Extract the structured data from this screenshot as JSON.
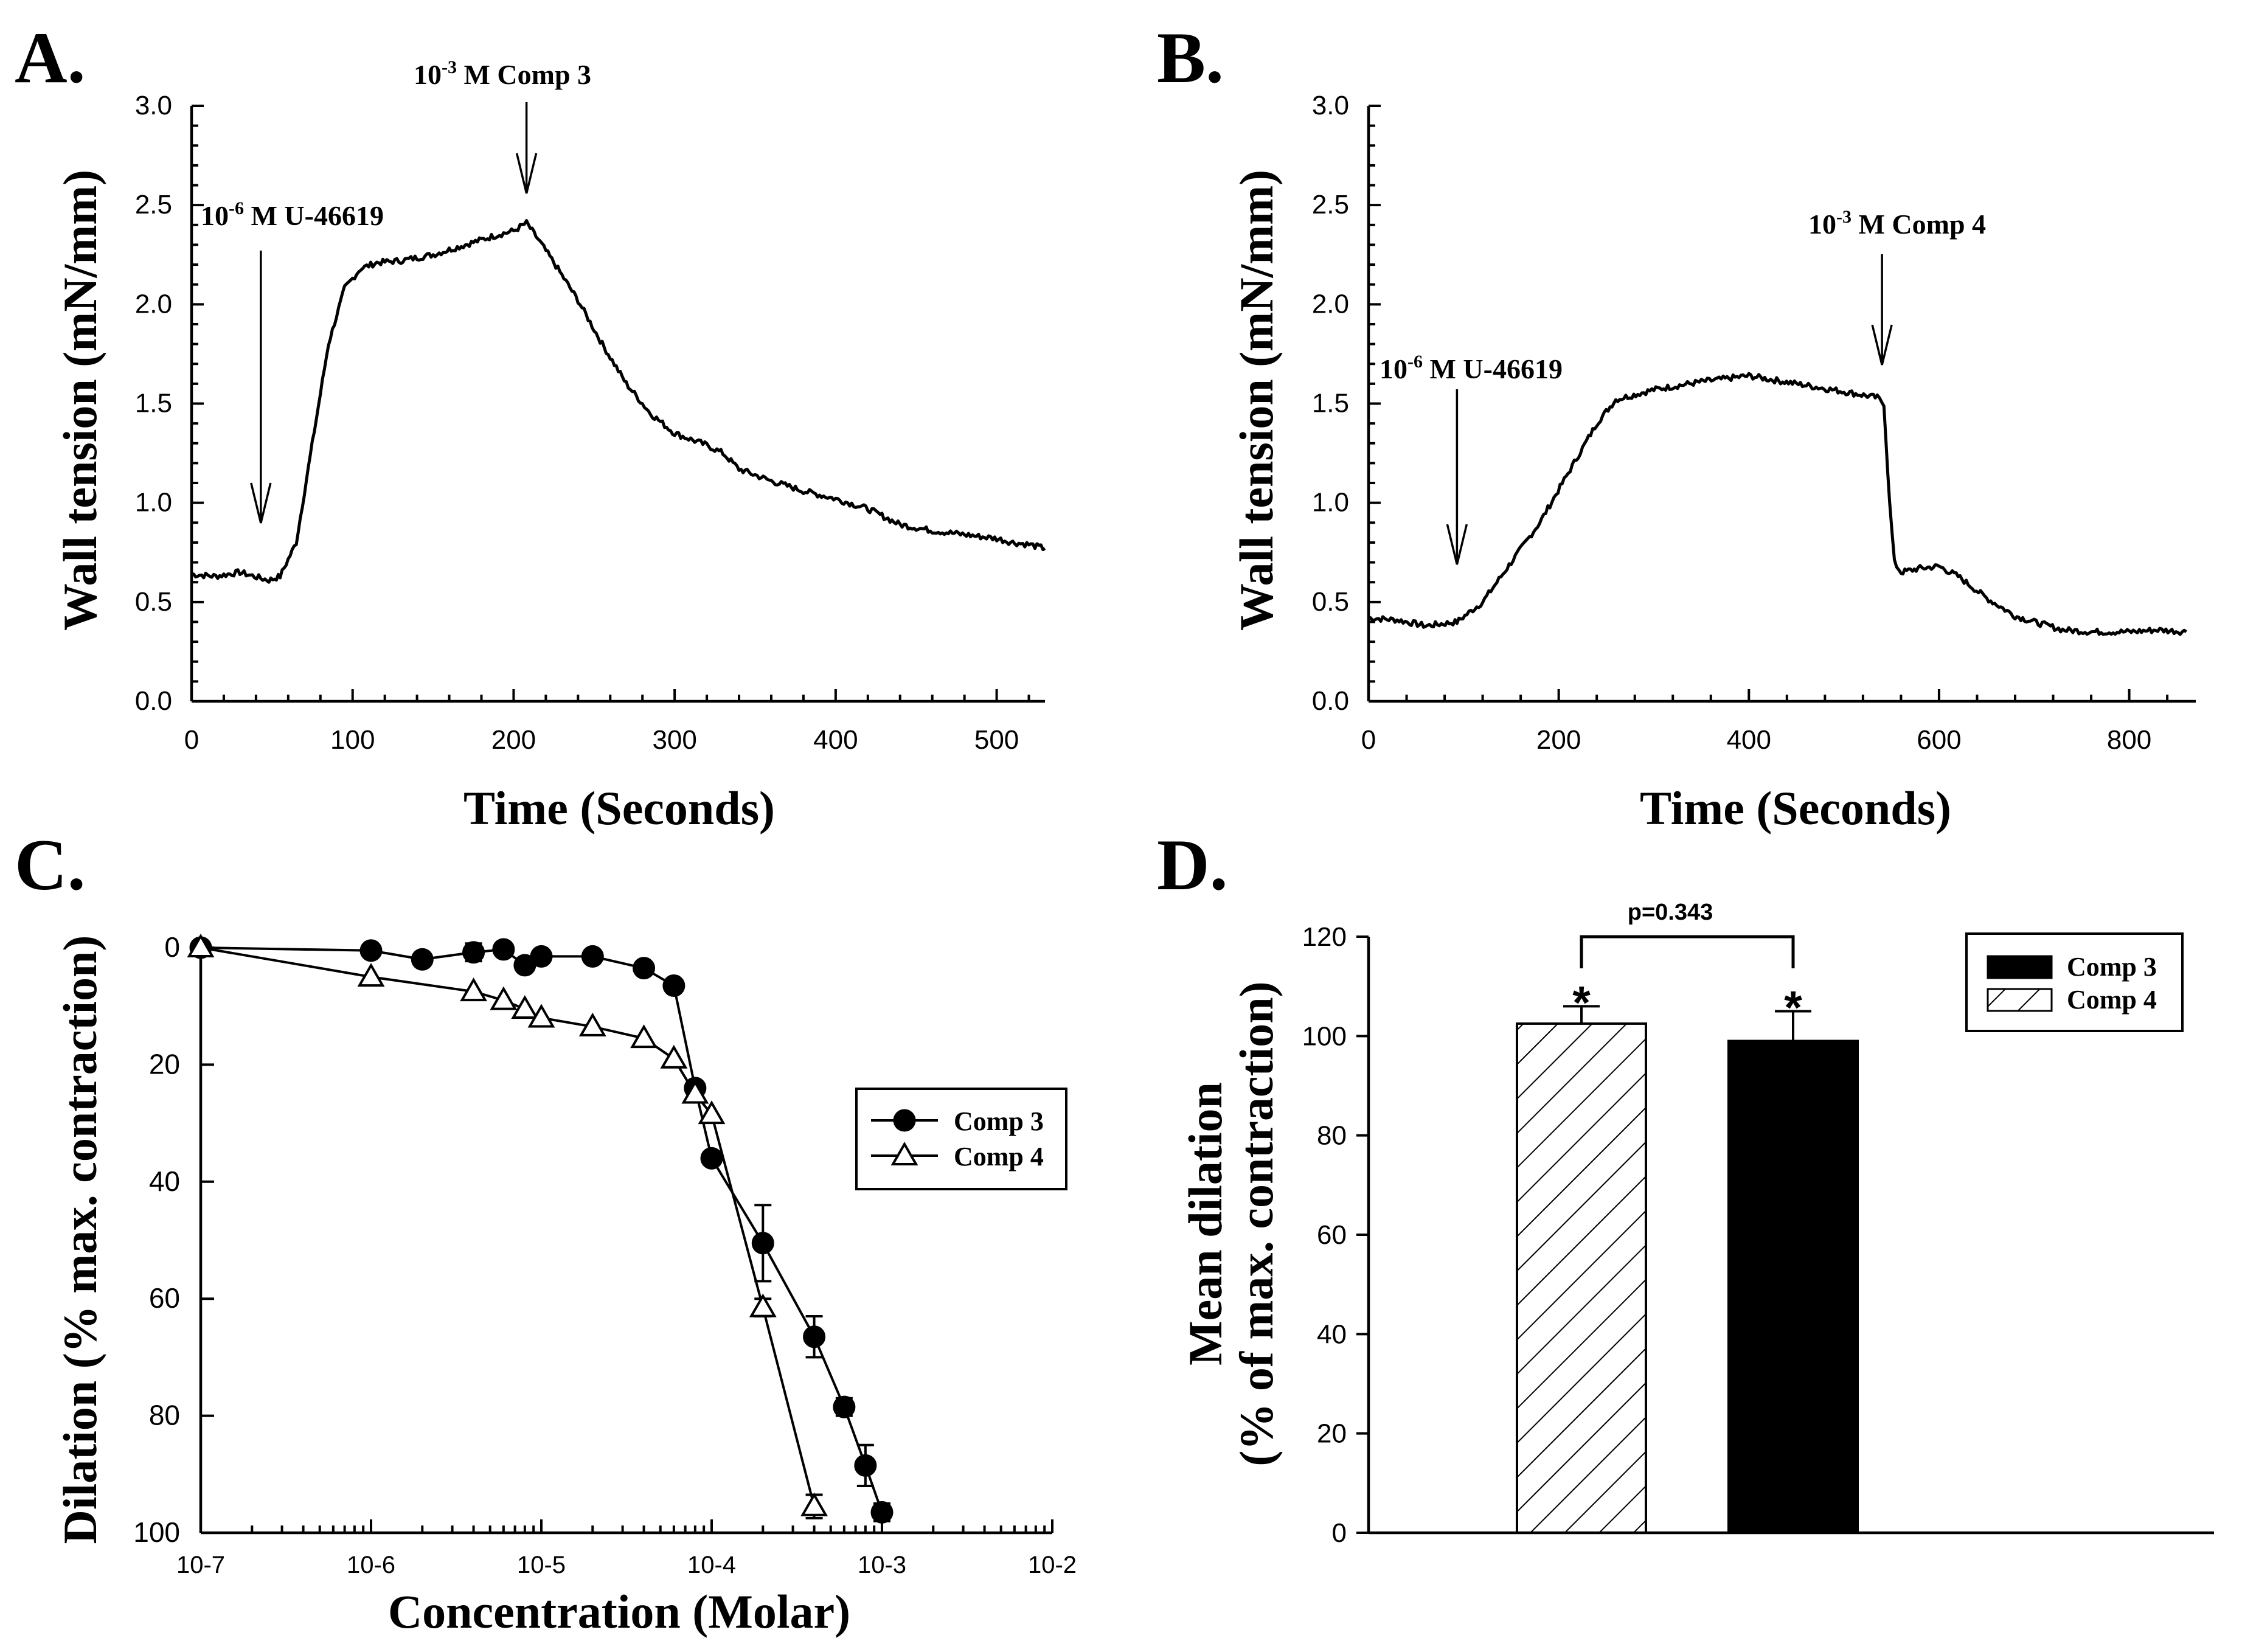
{
  "panels": {
    "A": {
      "letter": "A.",
      "xlabel": "Time (Seconds)",
      "ylabel": "Wall tension (mN/mm)",
      "xlim": [
        0,
        530
      ],
      "ylim": [
        0,
        3.0
      ],
      "xticks": [
        "0",
        "100",
        "200",
        "300",
        "400",
        "500"
      ],
      "yticks": [
        "0.0",
        "0.5",
        "1.0",
        "1.5",
        "2.0",
        "2.5",
        "3.0"
      ],
      "annotations": [
        {
          "base": "10",
          "exp": "-6",
          "rest": " M U-46619",
          "x": 43
        },
        {
          "base": "10",
          "exp": "-3",
          "rest": " M Comp 3",
          "x": 208
        }
      ]
    },
    "B": {
      "letter": "B.",
      "xlabel": "Time (Seconds)",
      "ylabel": "Wall tension (mN/mm)",
      "xlim": [
        0,
        870
      ],
      "ylim": [
        0,
        3.0
      ],
      "xticks": [
        "0",
        "200",
        "400",
        "600",
        "800"
      ],
      "yticks": [
        "0.0",
        "0.5",
        "1.0",
        "1.5",
        "2.0",
        "2.5",
        "3.0"
      ],
      "annotations": [
        {
          "base": "10",
          "exp": "-6",
          "rest": " M U-46619",
          "x": 93
        },
        {
          "base": "10",
          "exp": "-3",
          "rest": " M Comp 4",
          "x": 540
        }
      ]
    },
    "C": {
      "letter": "C.",
      "xlabel": "Concentration (Molar)",
      "ylabel": "Dilation (% max. contraction)",
      "xticks": [
        "10-7",
        "10-6",
        "10-5",
        "10-4",
        "10-3",
        "10-2"
      ],
      "yticks": [
        "0",
        "20",
        "40",
        "60",
        "80",
        "100"
      ],
      "legend": [
        "Comp 3",
        "Comp 4"
      ]
    },
    "D": {
      "letter": "D.",
      "ylabel_line1": "Mean dilation",
      "ylabel_line2": "(% of max. contraction)",
      "yticks": [
        "0",
        "20",
        "40",
        "60",
        "80",
        "100",
        "120"
      ],
      "p_label": "p=0.343",
      "star": "*",
      "legend": [
        "Comp 3",
        "Comp 4"
      ]
    }
  },
  "chart_data": [
    {
      "panel": "A",
      "type": "line",
      "xlabel": "Time (Seconds)",
      "ylabel": "Wall tension (mN/mm)",
      "xlim": [
        0,
        530
      ],
      "ylim": [
        0,
        3.0
      ],
      "x": [
        0,
        15,
        30,
        43,
        48,
        55,
        65,
        75,
        85,
        95,
        105,
        115,
        130,
        150,
        170,
        190,
        200,
        208,
        215,
        225,
        240,
        255,
        270,
        285,
        300,
        320,
        330,
        340,
        360,
        380,
        400,
        420,
        440,
        460,
        480,
        500,
        510,
        520,
        530
      ],
      "y": [
        0.64,
        0.63,
        0.65,
        0.62,
        0.61,
        0.63,
        0.8,
        1.3,
        1.8,
        2.08,
        2.18,
        2.21,
        2.22,
        2.25,
        2.3,
        2.35,
        2.37,
        2.41,
        2.33,
        2.21,
        2.02,
        1.8,
        1.6,
        1.45,
        1.35,
        1.29,
        1.25,
        1.17,
        1.11,
        1.06,
        1.02,
        0.97,
        0.89,
        0.86,
        0.84,
        0.82,
        0.8,
        0.79,
        0.77
      ]
    },
    {
      "panel": "B",
      "type": "line",
      "xlabel": "Time (Seconds)",
      "ylabel": "Wall tension (mN/mm)",
      "xlim": [
        0,
        870
      ],
      "ylim": [
        0,
        3.0
      ],
      "x": [
        0,
        30,
        60,
        93,
        120,
        150,
        180,
        210,
        240,
        260,
        300,
        350,
        400,
        450,
        500,
        535,
        542,
        548,
        553,
        560,
        580,
        600,
        620,
        650,
        680,
        700,
        730,
        760,
        800,
        830,
        860
      ],
      "y": [
        0.42,
        0.41,
        0.38,
        0.4,
        0.5,
        0.7,
        0.9,
        1.15,
        1.4,
        1.52,
        1.57,
        1.61,
        1.64,
        1.6,
        1.56,
        1.53,
        1.5,
        1.0,
        0.7,
        0.65,
        0.67,
        0.68,
        0.63,
        0.52,
        0.43,
        0.4,
        0.36,
        0.35,
        0.35,
        0.36,
        0.35
      ]
    },
    {
      "panel": "C",
      "type": "line",
      "xlabel": "Concentration (Molar)",
      "ylabel": "Dilation (% max. contraction)",
      "xscale": "log",
      "xlim": [
        1e-07,
        0.01
      ],
      "ylim": [
        0,
        100
      ],
      "y_inverted": true,
      "legend_position": "right",
      "series": [
        {
          "name": "Comp 3",
          "marker": "filled-circle",
          "x": [
            1e-07,
            1e-06,
            2e-06,
            4e-06,
            6e-06,
            8e-06,
            1e-05,
            2e-05,
            4e-05,
            6e-05,
            8e-05,
            0.0001,
            0.0002,
            0.0004,
            0.0006,
            0.0008,
            0.001
          ],
          "y": [
            0,
            0.5,
            2,
            0.8,
            0.3,
            3,
            1.5,
            1.5,
            3.5,
            6.5,
            24,
            36,
            50.5,
            66.5,
            78.5,
            88.5,
            96.5
          ],
          "err": [
            0,
            0,
            0,
            1.5,
            0,
            0,
            0,
            0,
            0,
            1,
            0,
            0,
            6.5,
            3.5,
            1.5,
            3.5,
            1.5
          ]
        },
        {
          "name": "Comp 4",
          "marker": "open-triangle",
          "x": [
            1e-07,
            1e-06,
            4e-06,
            6e-06,
            8e-06,
            1e-05,
            2e-05,
            4e-05,
            6e-05,
            8e-05,
            0.0001,
            0.0002,
            0.0004
          ],
          "y": [
            0,
            5,
            7.5,
            9,
            10.5,
            12,
            13.5,
            15.5,
            19,
            25,
            28.5,
            61.5,
            95.5
          ],
          "err": [
            0,
            0,
            0,
            0,
            0,
            0,
            0,
            0,
            0,
            0,
            0,
            1.5,
            2
          ]
        }
      ]
    },
    {
      "panel": "D",
      "type": "bar",
      "ylabel": "Mean dilation (% of max. contraction)",
      "ylim": [
        0,
        120
      ],
      "legend_position": "top-right",
      "series": [
        {
          "name": "Comp 4",
          "fill": "hatched",
          "value": 102.5,
          "err": 3.5
        },
        {
          "name": "Comp 3",
          "fill": "solid",
          "value": 99,
          "err": 6
        }
      ],
      "annotations": {
        "p_value": "p=0.343",
        "significance": "*"
      }
    }
  ]
}
